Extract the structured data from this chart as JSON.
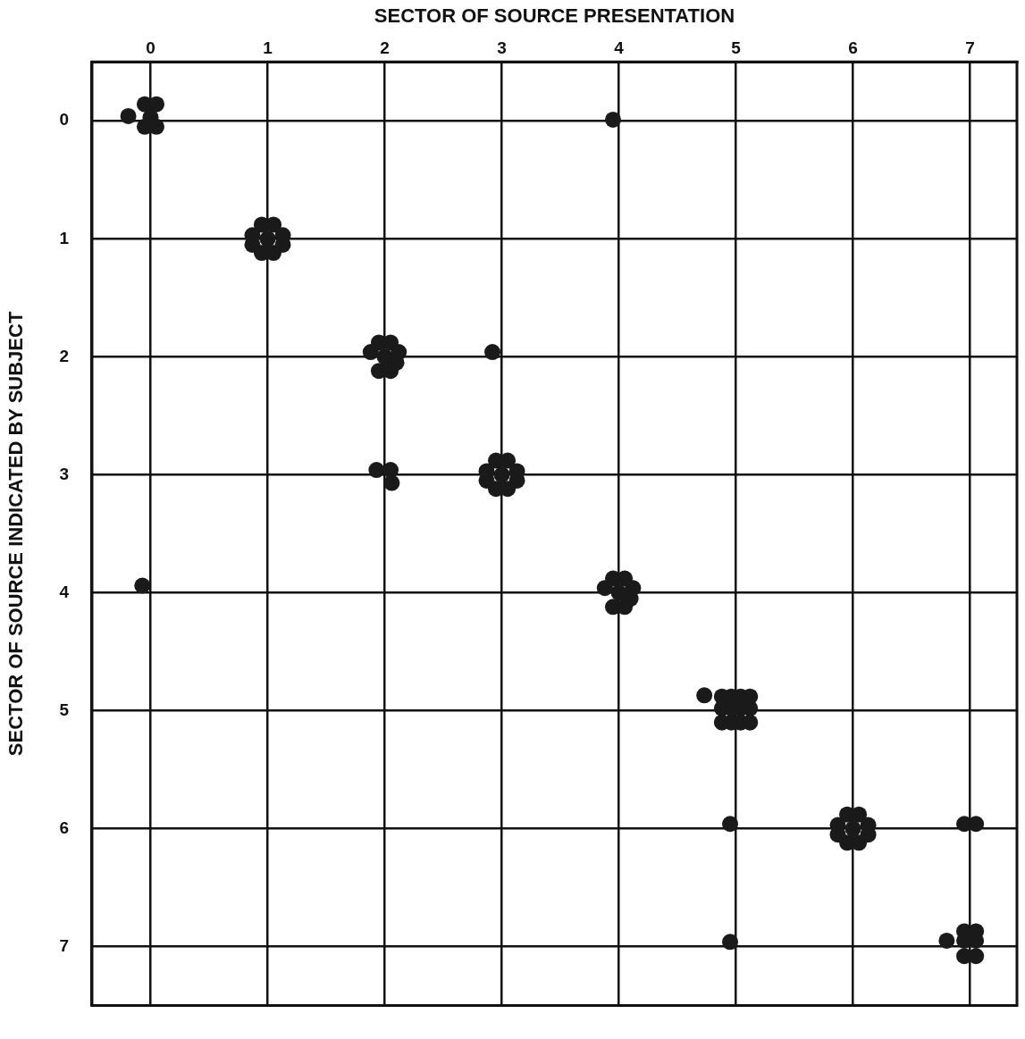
{
  "chart_data": {
    "type": "scatter",
    "xlabel": "SECTOR OF SOURCE PRESENTATION",
    "ylabel": "SECTOR OF SOURCE INDICATED BY SUBJECT",
    "x": [
      -0.19,
      -0.05,
      0.05,
      -0.05,
      0.05,
      0,
      0.95,
      1.05,
      0.87,
      1.13,
      0.87,
      1.13,
      0.95,
      1.05,
      1,
      1.95,
      2.05,
      1.88,
      2.12,
      2.1,
      1.95,
      2.05,
      2,
      2.92,
      3.95,
      -0.07,
      1.93,
      2.05,
      2.06,
      2.95,
      3.05,
      2.87,
      3.13,
      2.87,
      3.13,
      2.95,
      3.05,
      3,
      3.95,
      4.05,
      3.88,
      4.12,
      4.1,
      3.95,
      4.05,
      4,
      4.73,
      4.88,
      4.96,
      5.04,
      5.12,
      4.88,
      4.96,
      5.04,
      5.12,
      4.88,
      4.96,
      5.04,
      5.12,
      4.95,
      4.95,
      5.95,
      6.05,
      5.87,
      6.13,
      5.87,
      6.13,
      5.95,
      6.05,
      6,
      6.95,
      7.05,
      6.8,
      6.95,
      7.05,
      6.95,
      7.05,
      6.95,
      7.05
    ],
    "values": [
      -0.04,
      -0.14,
      -0.14,
      0.05,
      0.05,
      -0.03,
      0.88,
      0.88,
      0.97,
      0.97,
      1.05,
      1.05,
      1.12,
      1.12,
      1,
      1.88,
      1.88,
      1.96,
      1.96,
      2.05,
      2.12,
      2.12,
      2,
      1.96,
      -0.01,
      3.94,
      2.96,
      2.96,
      3.07,
      2.88,
      2.88,
      2.97,
      2.97,
      3.05,
      3.05,
      3.12,
      3.12,
      3,
      3.88,
      3.88,
      3.96,
      3.96,
      4.05,
      4.12,
      4.12,
      4,
      4.87,
      4.88,
      4.88,
      4.88,
      4.88,
      4.98,
      4.98,
      4.98,
      4.98,
      5.1,
      5.1,
      5.1,
      5.1,
      5.96,
      6.96,
      5.88,
      5.88,
      5.97,
      5.97,
      6.05,
      6.05,
      6.12,
      6.12,
      6,
      5.96,
      5.96,
      6.95,
      6.87,
      6.87,
      6.95,
      6.95,
      7.08,
      7.08
    ],
    "color": "#1a1a1a",
    "marker": "circle",
    "xlim": [
      -0.5,
      7.4
    ],
    "ylim": [
      7.5,
      -0.5
    ],
    "xticks": [
      0,
      1,
      2,
      3,
      4,
      5,
      6,
      7
    ],
    "yticks": [
      0,
      1,
      2,
      3,
      4,
      5,
      6,
      7
    ],
    "grid": true
  }
}
